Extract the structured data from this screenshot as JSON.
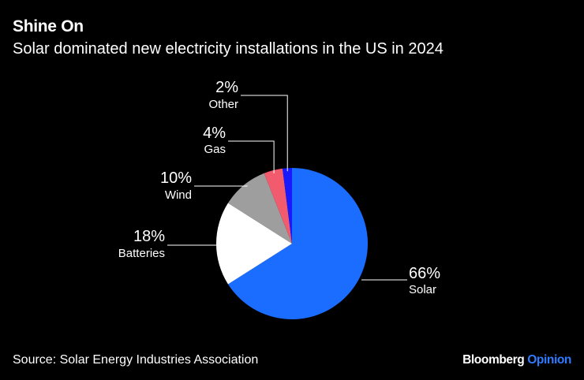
{
  "title": "Shine On",
  "subtitle": "Solar dominated new electricity installations in the US in 2024",
  "source": "Source: Solar Energy Industries Association",
  "brand": {
    "name": "Bloomberg",
    "suffix": "Opinion",
    "suffix_color": "#2f7bff"
  },
  "chart_data": {
    "type": "pie",
    "categories": [
      "Solar",
      "Batteries",
      "Wind",
      "Gas",
      "Other"
    ],
    "values": [
      66,
      18,
      10,
      4,
      2
    ],
    "value_labels": [
      "66%",
      "18%",
      "10%",
      "4%",
      "2%"
    ],
    "colors": [
      "#1a6dff",
      "#ffffff",
      "#9e9e9e",
      "#f25a6e",
      "#1919ff"
    ]
  }
}
